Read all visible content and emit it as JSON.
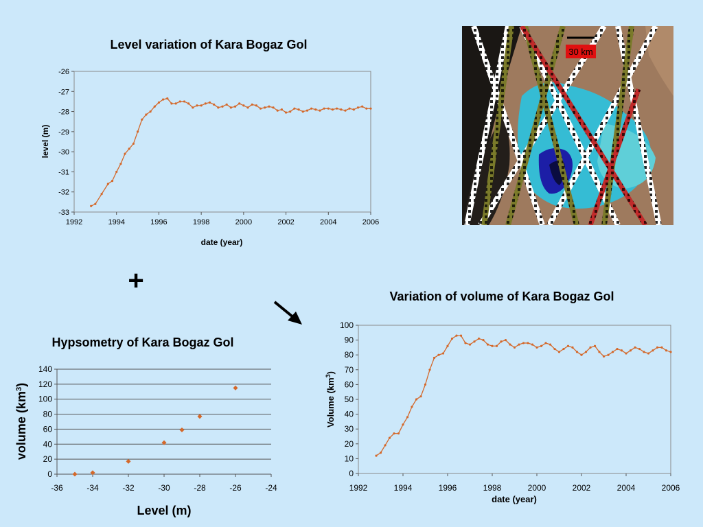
{
  "slide": {
    "plus_symbol": "+",
    "satellite_image": {
      "name": "Satellite image of Kara Bogaz Gol with altimetry tracks",
      "scale_label": "30 km"
    }
  },
  "chart_data": [
    {
      "id": "level",
      "type": "line",
      "title": "Level variation of Kara Bogaz Gol",
      "xlabel": "date (year)",
      "ylabel": "level (m)",
      "xlim": [
        1992,
        2006
      ],
      "ylim": [
        -33,
        -26
      ],
      "xticks": [
        1992,
        1994,
        1996,
        1998,
        2000,
        2002,
        2004,
        2006
      ],
      "yticks": [
        -33,
        -32,
        -31,
        -30,
        -29,
        -28,
        -27,
        -26
      ],
      "grid": false,
      "color": "#d4682a",
      "series": [
        {
          "x": [
            1992.8,
            1993.0,
            1993.3,
            1993.6,
            1993.8,
            1994.0,
            1994.2,
            1994.4,
            1994.6,
            1994.8,
            1995.0,
            1995.2,
            1995.4,
            1995.6,
            1995.8,
            1996.0,
            1996.2,
            1996.4,
            1996.6,
            1996.8,
            1997.0,
            1997.2,
            1997.4,
            1997.6,
            1997.8,
            1998.0,
            1998.2,
            1998.4,
            1998.6,
            1998.8,
            1999.0,
            1999.2,
            1999.4,
            1999.6,
            1999.8,
            2000.0,
            2000.2,
            2000.4,
            2000.6,
            2000.8,
            2001.0,
            2001.2,
            2001.4,
            2001.6,
            2001.8,
            2002.0,
            2002.2,
            2002.4,
            2002.6,
            2002.8,
            2003.0,
            2003.2,
            2003.4,
            2003.6,
            2003.8,
            2004.0,
            2004.2,
            2004.4,
            2004.6,
            2004.8,
            2005.0,
            2005.2,
            2005.4,
            2005.6,
            2005.8,
            2006.0
          ],
          "y": [
            -32.7,
            -32.6,
            -32.1,
            -31.6,
            -31.45,
            -31.0,
            -30.6,
            -30.1,
            -29.85,
            -29.6,
            -29.0,
            -28.4,
            -28.15,
            -28.0,
            -27.75,
            -27.55,
            -27.4,
            -27.35,
            -27.6,
            -27.6,
            -27.5,
            -27.5,
            -27.6,
            -27.8,
            -27.7,
            -27.7,
            -27.6,
            -27.55,
            -27.65,
            -27.8,
            -27.75,
            -27.65,
            -27.8,
            -27.75,
            -27.6,
            -27.7,
            -27.8,
            -27.65,
            -27.7,
            -27.85,
            -27.8,
            -27.75,
            -27.8,
            -27.95,
            -27.9,
            -28.05,
            -28.0,
            -27.85,
            -27.9,
            -28.0,
            -27.95,
            -27.85,
            -27.9,
            -27.95,
            -27.85,
            -27.85,
            -27.9,
            -27.85,
            -27.9,
            -27.95,
            -27.85,
            -27.9,
            -27.8,
            -27.75,
            -27.85,
            -27.85
          ]
        }
      ]
    },
    {
      "id": "hypsometry",
      "type": "scatter",
      "title": "Hypsometry of Kara Bogaz Gol",
      "xlabel": "Level  (m)",
      "ylabel": "volume (km",
      "ylabel_sup": "3",
      "ylabel_close": ")",
      "xlim": [
        -36,
        -24
      ],
      "ylim": [
        0,
        140
      ],
      "xticks": [
        -36,
        -34,
        -32,
        -30,
        -28,
        -26,
        -24
      ],
      "yticks": [
        0,
        20,
        40,
        60,
        80,
        100,
        120,
        140
      ],
      "grid": true,
      "color": "#d4682a",
      "series": [
        {
          "x": [
            -35,
            -34,
            -32,
            -30,
            -29,
            -28,
            -26
          ],
          "y": [
            0,
            2,
            17,
            42,
            59,
            77,
            115
          ]
        }
      ]
    },
    {
      "id": "volume",
      "type": "line",
      "title": "Variation of volume of Kara Bogaz Gol",
      "xlabel": "date (year)",
      "ylabel": "Volume (km",
      "ylabel_sup": "3",
      "ylabel_close": ")",
      "xlim": [
        1992,
        2006
      ],
      "ylim": [
        0,
        100
      ],
      "xticks": [
        1992,
        1994,
        1996,
        1998,
        2000,
        2002,
        2004,
        2006
      ],
      "yticks": [
        0,
        10,
        20,
        30,
        40,
        50,
        60,
        70,
        80,
        90,
        100
      ],
      "grid": false,
      "color": "#d4682a",
      "series": [
        {
          "x": [
            1992.8,
            1993.0,
            1993.2,
            1993.4,
            1993.6,
            1993.8,
            1994.0,
            1994.2,
            1994.4,
            1994.6,
            1994.8,
            1995.0,
            1995.2,
            1995.4,
            1995.6,
            1995.8,
            1996.0,
            1996.2,
            1996.4,
            1996.6,
            1996.8,
            1997.0,
            1997.2,
            1997.4,
            1997.6,
            1997.8,
            1998.0,
            1998.2,
            1998.4,
            1998.6,
            1998.8,
            1999.0,
            1999.2,
            1999.4,
            1999.6,
            1999.8,
            2000.0,
            2000.2,
            2000.4,
            2000.6,
            2000.8,
            2001.0,
            2001.2,
            2001.4,
            2001.6,
            2001.8,
            2002.0,
            2002.2,
            2002.4,
            2002.6,
            2002.8,
            2003.0,
            2003.2,
            2003.4,
            2003.6,
            2003.8,
            2004.0,
            2004.2,
            2004.4,
            2004.6,
            2004.8,
            2005.0,
            2005.2,
            2005.4,
            2005.6,
            2005.8,
            2006.0
          ],
          "y": [
            12,
            14,
            19,
            24,
            27,
            27,
            33,
            38,
            45,
            50,
            52,
            60,
            70,
            78,
            80,
            81,
            86,
            91,
            93,
            93,
            88,
            87,
            89,
            91,
            90,
            87,
            86,
            86,
            89,
            90,
            87,
            85,
            87,
            88,
            88,
            87,
            85,
            86,
            88,
            87,
            84,
            82,
            84,
            86,
            85,
            82,
            80,
            82,
            85,
            86,
            82,
            79,
            80,
            82,
            84,
            83,
            81,
            83,
            85,
            84,
            82,
            81,
            83,
            85,
            85,
            83,
            82
          ]
        }
      ]
    }
  ]
}
